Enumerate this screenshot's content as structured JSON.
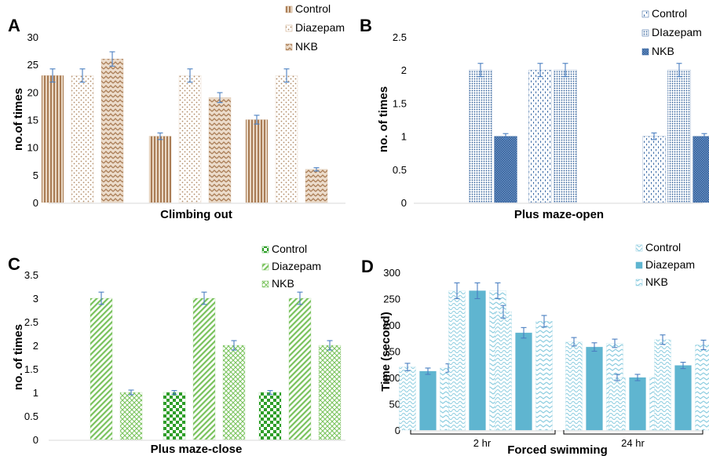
{
  "chart_data": [
    {
      "type": "bar",
      "panel_letter": "A",
      "xlabel": "Climbing out",
      "ylabel": "no.of times",
      "ylim": [
        0,
        30
      ],
      "yticks": [
        0,
        5,
        10,
        15,
        20,
        25,
        30
      ],
      "ytick_labels": [
        "0",
        "5",
        "10",
        "15",
        "20",
        "25",
        "30"
      ],
      "legend_position": "top-right",
      "series": [
        {
          "name": "Control",
          "color": "#b98f67",
          "pattern": "vertical-lines",
          "values": [
            23,
            12,
            15
          ]
        },
        {
          "name": "Diazepam",
          "color": "#c9a27e",
          "pattern": "dots",
          "values": [
            23,
            23,
            23
          ]
        },
        {
          "name": "NKB",
          "color": "#b98f67",
          "pattern": "zigzag",
          "values": [
            26,
            19,
            6
          ]
        }
      ],
      "order": [
        [
          0,
          1,
          2
        ],
        [
          0,
          1,
          2
        ],
        [
          0,
          1,
          2
        ]
      ],
      "errors": [
        [
          1.2,
          0.6,
          0.8
        ],
        [
          1.2,
          1.2,
          1.2
        ],
        [
          1.3,
          0.9,
          0.3
        ]
      ]
    },
    {
      "type": "bar",
      "panel_letter": "B",
      "xlabel": "Plus maze-open",
      "ylabel": "no. of times",
      "ylim": [
        0,
        2.5
      ],
      "yticks": [
        0,
        0.5,
        1,
        1.5,
        2,
        2.5
      ],
      "ytick_labels": [
        "0",
        "0.5",
        "1",
        "1.5",
        "2",
        "2.5"
      ],
      "legend_position": "top-right",
      "series": [
        {
          "name": "Control",
          "color": "#2f5f9a",
          "pattern": "sparse-dash",
          "values": [
            2,
            2,
            1
          ]
        },
        {
          "name": "DIazepam",
          "color": "#2f5f9a",
          "pattern": "dense-dots",
          "values": [
            2,
            2,
            2
          ]
        },
        {
          "name": "NKB",
          "color": "#2f5f9a",
          "pattern": "crosshatch",
          "values": [
            1,
            0,
            1
          ]
        }
      ],
      "order": [
        [
          1,
          2
        ],
        [
          0,
          1
        ],
        [
          0,
          1,
          2
        ]
      ],
      "errors": [
        [
          0.1,
          0.1,
          0.05
        ],
        [
          0.1,
          0.1,
          0.1
        ],
        [
          0.04,
          0,
          0.04
        ]
      ]
    },
    {
      "type": "bar",
      "panel_letter": "C",
      "xlabel": "Plus maze-close",
      "ylabel": "no. of times",
      "ylim": [
        0,
        3.5
      ],
      "yticks": [
        0,
        0.5,
        1,
        1.5,
        2,
        2.5,
        3,
        3.5
      ],
      "ytick_labels": [
        "0",
        "0.5",
        "1",
        "1.5",
        "2",
        "2.5",
        "3",
        "3.5"
      ],
      "legend_position": "top-right",
      "series": [
        {
          "name": "Control",
          "color": "#35a62e",
          "pattern": "checker",
          "values": [
            0,
            1,
            1
          ]
        },
        {
          "name": "Diazepam",
          "color": "#79c25c",
          "pattern": "diagonal",
          "values": [
            3,
            3,
            3
          ]
        },
        {
          "name": "NKB",
          "color": "#79c25c",
          "pattern": "diamond",
          "values": [
            1,
            2,
            2
          ]
        }
      ],
      "order": [
        [
          1,
          2
        ],
        [
          0,
          1,
          2
        ],
        [
          0,
          1,
          2
        ]
      ],
      "errors": [
        [
          0,
          0.04,
          0.04
        ],
        [
          0.13,
          0.13,
          0.13
        ],
        [
          0.05,
          0.1,
          0.1
        ]
      ]
    },
    {
      "type": "bar",
      "panel_letter": "D",
      "title": "Forced swimming",
      "xlabel": "",
      "group_labels": [
        "2 hr",
        "24 hr"
      ],
      "ylabel": "Time (second)",
      "ylim": [
        0,
        300
      ],
      "yticks": [
        0,
        50,
        100,
        150,
        200,
        250,
        300
      ],
      "ytick_labels": [
        "0",
        "50",
        "100",
        "150",
        "200",
        "250",
        "300"
      ],
      "legend_position": "top-right",
      "series": [
        {
          "name": "Control",
          "color": "#8dcde0",
          "pattern": "wave",
          "values": [
            120,
            265,
            225,
            168,
            100,
            172
          ]
        },
        {
          "name": "Diazepam",
          "color": "#5fb5d0",
          "pattern": "solid",
          "values": [
            112,
            265,
            185,
            158,
            100,
            123
          ]
        },
        {
          "name": "NKB",
          "color": "#8dcde0",
          "pattern": "chevron",
          "values": [
            118,
            265,
            207,
            165,
            100,
            162
          ]
        }
      ],
      "order": [
        [
          0,
          1,
          2
        ],
        [
          0,
          1,
          2
        ],
        [
          0,
          1,
          2
        ],
        [
          0,
          1,
          2
        ],
        [
          0,
          1,
          2
        ],
        [
          0,
          1,
          2
        ]
      ],
      "errors": [
        [
          7,
          15,
          12,
          8,
          6,
          9
        ],
        [
          6,
          15,
          10,
          8,
          6,
          6
        ],
        [
          8,
          15,
          11,
          8,
          6,
          9
        ]
      ]
    }
  ]
}
